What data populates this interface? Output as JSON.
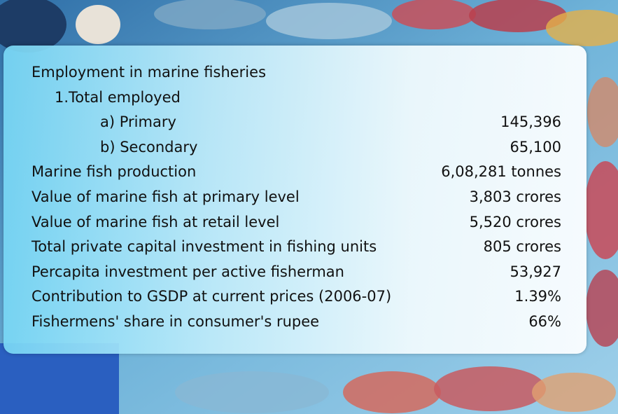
{
  "rows": [
    {
      "label": "Employment in marine fisheries",
      "children": [
        {
          "label": "1.Total employed",
          "children": [
            {
              "label": "a) Primary",
              "value": "145,396"
            },
            {
              "label": "b) Secondary",
              "value": "65,100"
            }
          ]
        }
      ]
    },
    {
      "label": "Marine fish production",
      "value": "6,08,281 tonnes"
    },
    {
      "label": "Value of marine fish at primary level",
      "value": "3,803 crores"
    },
    {
      "label": "Value of marine fish at retail level",
      "value": "5,520 crores"
    },
    {
      "label": "Total private capital investment in fishing units",
      "value": "805 crores"
    },
    {
      "label": "Percapita investment per active fisherman",
      "value": "53,927"
    },
    {
      "label": "Contribution  to GSDP at current  prices (2006-07)",
      "value": "1.39%"
    },
    {
      "label": "Fishermens' share in consumer's rupee",
      "value": "66%"
    }
  ]
}
